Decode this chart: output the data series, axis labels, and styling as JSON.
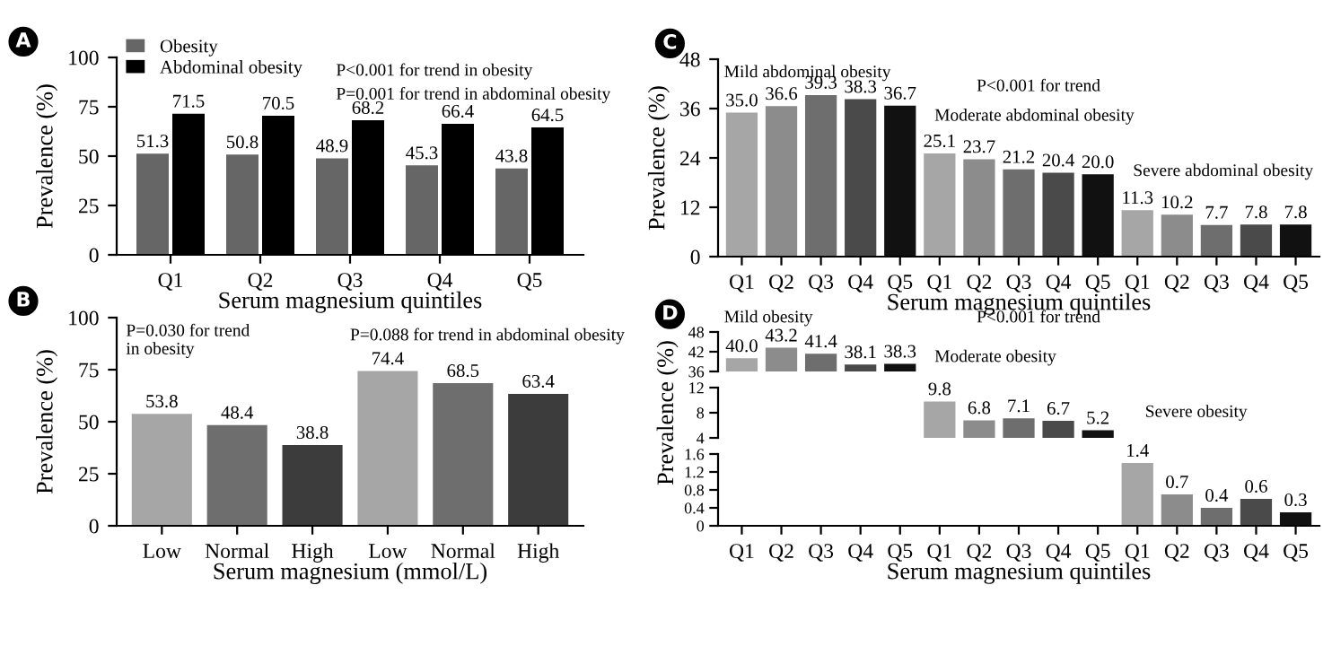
{
  "chart_data": [
    {
      "type": "bar",
      "ylabel": "Prevalence (%)",
      "xlabel": "Serum magnesium quintiles",
      "categories": [
        "Q1",
        "Q2",
        "Q3",
        "Q4",
        "Q5"
      ],
      "series": [
        {
          "name": "Obesity",
          "color": "#666666",
          "values": [
            51.3,
            50.8,
            48.9,
            45.3,
            43.8
          ]
        },
        {
          "name": "Abdominal obesity",
          "color": "#000000",
          "values": [
            71.5,
            70.5,
            68.2,
            66.4,
            64.5
          ]
        }
      ],
      "ylim": [
        0,
        100
      ],
      "yticks": [
        0,
        25,
        50,
        75,
        100
      ],
      "data_labels": true,
      "legend": "top left",
      "annotations": [
        "A",
        "P<0.001 for trend in obesity",
        "P=0.001 for trend in abdominal obesity"
      ]
    },
    {
      "type": "bar",
      "ylabel": "Prevalence (%)",
      "xlabel": "Serum magnesium (mmol/L)",
      "categories": [
        "Low",
        "Normal",
        "High",
        "Low",
        "Normal",
        "High"
      ],
      "values": [
        53.8,
        48.4,
        38.8,
        74.4,
        68.5,
        63.4
      ],
      "colors": [
        "#a6a6a6",
        "#6e6e6e",
        "#3c3c3c",
        "#a6a6a6",
        "#6e6e6e",
        "#3c3c3c"
      ],
      "ylim": [
        0,
        100
      ],
      "yticks": [
        0,
        25,
        50,
        75,
        100
      ],
      "data_labels": true,
      "annotations": [
        "B",
        "P=0.030 for trend\nin obesity",
        "P=0.088 for trend in abdominal obesity"
      ]
    },
    {
      "type": "bar",
      "ylabel": "Prevalence (%)",
      "xlabel": "Serum magnesium quintiles",
      "categories": [
        "Q1",
        "Q2",
        "Q3",
        "Q4",
        "Q5",
        "Q1",
        "Q2",
        "Q3",
        "Q4",
        "Q5",
        "Q1",
        "Q2",
        "Q3",
        "Q4",
        "Q5"
      ],
      "values": [
        35.0,
        36.6,
        39.3,
        38.3,
        36.7,
        25.1,
        23.7,
        21.2,
        20.4,
        20.0,
        11.3,
        10.2,
        7.7,
        7.8,
        7.8
      ],
      "value_labels": [
        "35.0",
        "36.6",
        "39.3",
        "38.3",
        "36.7",
        "25.1",
        "23.7",
        "21.2",
        "20.4",
        "20.0",
        "11.3",
        "10.2",
        "7.7",
        "7.8",
        "7.8"
      ],
      "colors": [
        "#a6a6a6",
        "#8c8c8c",
        "#6e6e6e",
        "#4a4a4a",
        "#111111",
        "#a6a6a6",
        "#8c8c8c",
        "#6e6e6e",
        "#4a4a4a",
        "#111111",
        "#a6a6a6",
        "#8c8c8c",
        "#6e6e6e",
        "#4a4a4a",
        "#111111"
      ],
      "ylim": [
        0,
        48
      ],
      "yticks": [
        0,
        12,
        24,
        36,
        48
      ],
      "annotations": [
        "C",
        "Mild abdominal obesity",
        "P<0.001 for trend",
        "Moderate abdominal obesity",
        "Severe abdominal obesity"
      ]
    },
    {
      "type": "bar",
      "categories": [
        null,
        null,
        null,
        null,
        null,
        null,
        null,
        null,
        null,
        null,
        null,
        null,
        null,
        null,
        null
      ],
      "values": [
        40.0,
        43.2,
        41.4,
        38.1,
        38.3,
        null,
        null,
        null,
        null,
        null,
        null,
        null,
        null,
        null,
        null
      ],
      "value_labels": [
        "40.0",
        "43.2",
        "41.4",
        "38.1",
        "38.3",
        null,
        null,
        null,
        null,
        null,
        null,
        null,
        null,
        null,
        null
      ],
      "colors": [
        "#a6a6a6",
        "#8c8c8c",
        "#6e6e6e",
        "#4a4a4a",
        "#111111",
        "#a6a6a6",
        "#8c8c8c",
        "#6e6e6e",
        "#4a4a4a",
        "#111111",
        "#a6a6a6",
        "#8c8c8c",
        "#6e6e6e",
        "#4a4a4a",
        "#111111"
      ],
      "ylim": [
        36,
        48
      ],
      "yticks": [
        36,
        42,
        48
      ],
      "tick_labels": "y",
      "annotations": [
        "D",
        "Mild obesity",
        "P<0.001 for trend",
        "Moderate obesity"
      ]
    },
    {
      "type": "bar",
      "ylabel": "Prevalence (%)",
      "categories": [
        null,
        null,
        null,
        null,
        null,
        null,
        null,
        null,
        null,
        null,
        null,
        null,
        null,
        null,
        null
      ],
      "values": [
        null,
        null,
        null,
        null,
        null,
        9.8,
        6.8,
        7.1,
        6.7,
        5.2,
        null,
        null,
        null,
        null,
        null
      ],
      "value_labels": [
        null,
        null,
        null,
        null,
        null,
        "9.8",
        "6.8",
        "7.1",
        "6.7",
        "5.2",
        null,
        null,
        null,
        null,
        null
      ],
      "colors": [
        "#a6a6a6",
        "#8c8c8c",
        "#6e6e6e",
        "#4a4a4a",
        "#111111",
        "#a6a6a6",
        "#8c8c8c",
        "#6e6e6e",
        "#4a4a4a",
        "#111111",
        "#a6a6a6",
        "#8c8c8c",
        "#6e6e6e",
        "#4a4a4a",
        "#111111"
      ],
      "ylim": [
        4,
        12
      ],
      "yticks": [
        4,
        8,
        12
      ],
      "tick_labels": "y",
      "annotations": [
        "Severe obesity"
      ]
    },
    {
      "type": "bar",
      "xlabel": "Serum magnesium quintiles",
      "categories": [
        "Q1",
        "Q2",
        "Q3",
        "Q4",
        "Q5",
        "Q1",
        "Q2",
        "Q3",
        "Q4",
        "Q5",
        "Q1",
        "Q2",
        "Q3",
        "Q4",
        "Q5"
      ],
      "values": [
        null,
        null,
        null,
        null,
        null,
        null,
        null,
        null,
        null,
        null,
        1.4,
        0.7,
        0.4,
        0.6,
        0.3
      ],
      "value_labels": [
        null,
        null,
        null,
        null,
        null,
        null,
        null,
        null,
        null,
        null,
        "1.4",
        "0.7",
        "0.4",
        "0.6",
        "0.3"
      ],
      "colors": [
        "#a6a6a6",
        "#8c8c8c",
        "#6e6e6e",
        "#4a4a4a",
        "#111111",
        "#a6a6a6",
        "#8c8c8c",
        "#6e6e6e",
        "#4a4a4a",
        "#111111",
        "#a6a6a6",
        "#8c8c8c",
        "#6e6e6e",
        "#4a4a4a",
        "#111111"
      ],
      "ylim": [
        0,
        1.6
      ],
      "yticks": [
        0,
        0.4,
        0.8,
        1.2,
        1.6
      ]
    }
  ]
}
